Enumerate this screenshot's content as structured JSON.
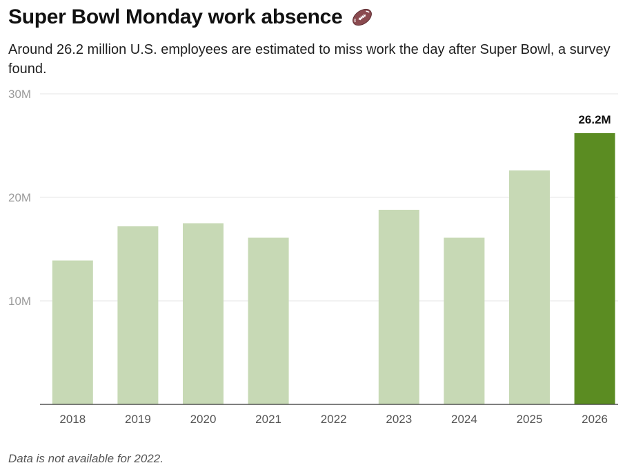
{
  "header": {
    "title": "Super Bowl Monday work absence",
    "title_icon": "football-icon",
    "subtitle": "Around 26.2 million U.S. employees are estimated to miss work the day after Super Bowl, a survey found."
  },
  "footnote": "Data is not available for 2022.",
  "colors": {
    "bar_default": "#c7d9b5",
    "bar_highlight": "#5b8c22",
    "gridline": "#e6e6e6",
    "axis": "#333333",
    "tick_label": "#555555",
    "y_tick_label": "#9a9a9a"
  },
  "chart_data": {
    "type": "bar",
    "title": "Super Bowl Monday work absence",
    "xlabel": "",
    "ylabel": "",
    "categories": [
      "2018",
      "2019",
      "2020",
      "2021",
      "2022",
      "2023",
      "2024",
      "2025",
      "2026"
    ],
    "values": [
      13.9,
      17.2,
      17.5,
      16.1,
      null,
      18.8,
      16.1,
      22.6,
      26.2
    ],
    "units": "million",
    "ylim": [
      0,
      30
    ],
    "yticks": [
      10,
      20,
      30
    ],
    "ytick_labels": [
      "10M",
      "20M",
      "30M"
    ],
    "highlight_index": 8,
    "highlight_label": "26.2M",
    "grid": true,
    "legend": "none"
  }
}
